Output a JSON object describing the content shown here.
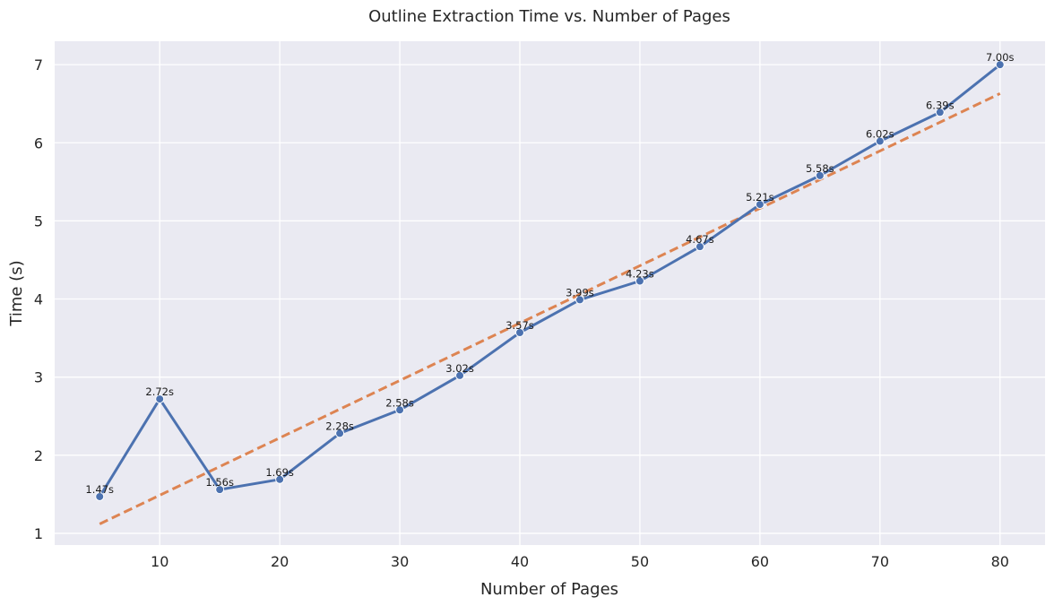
{
  "chart_data": {
    "type": "line",
    "title": "Outline Extraction Time vs. Number of Pages",
    "xlabel": "Number of Pages",
    "ylabel": "Time (s)",
    "xlim": [
      1.25,
      83.75
    ],
    "ylim": [
      0.85,
      7.3
    ],
    "xticks": [
      10,
      20,
      30,
      40,
      50,
      60,
      70,
      80
    ],
    "yticks": [
      1,
      2,
      3,
      4,
      5,
      6,
      7
    ],
    "grid": true,
    "background": "#eaeaf2",
    "series": [
      {
        "style": "solid-markers",
        "color": "#4c72b0",
        "x": [
          5,
          10,
          15,
          20,
          25,
          30,
          35,
          40,
          45,
          50,
          55,
          60,
          65,
          70,
          75,
          80
        ],
        "y": [
          1.47,
          2.72,
          1.56,
          1.69,
          2.28,
          2.58,
          3.02,
          3.57,
          3.99,
          4.23,
          4.67,
          5.21,
          5.58,
          6.02,
          6.39,
          7.0
        ],
        "labels": [
          "1.47s",
          "2.72s",
          "1.56s",
          "1.69s",
          "2.28s",
          "2.58s",
          "3.02s",
          "3.57s",
          "3.99s",
          "4.23s",
          "4.67s",
          "5.21s",
          "5.58s",
          "6.02s",
          "6.39s",
          "7.00s"
        ]
      },
      {
        "style": "dashed-trend",
        "color": "#dd8452",
        "x": [
          5,
          80
        ],
        "y": [
          1.12,
          6.63
        ]
      }
    ]
  }
}
